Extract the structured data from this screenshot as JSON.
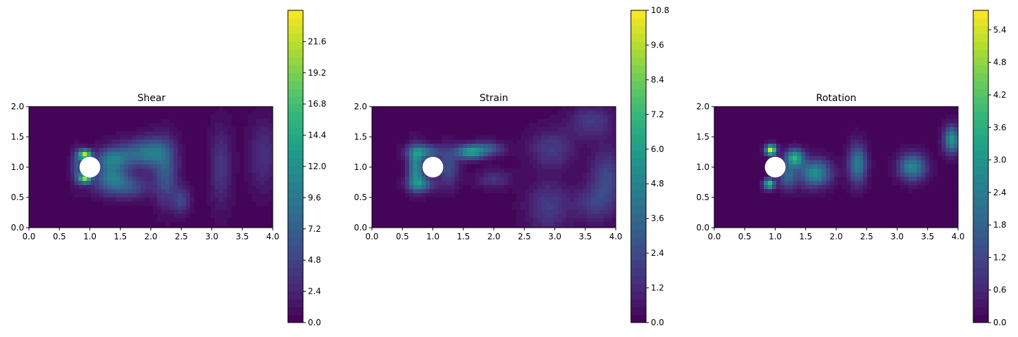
{
  "chart_data": [
    {
      "type": "heatmap",
      "title": "Shear",
      "xlim": [
        0,
        4.0
      ],
      "ylim": [
        0,
        2.0
      ],
      "xticks": [
        "0.0",
        "0.5",
        "1.0",
        "1.5",
        "2.0",
        "2.5",
        "3.0",
        "3.5",
        "4.0"
      ],
      "yticks": [
        "0.0",
        "0.5",
        "1.0",
        "1.5",
        "2.0"
      ],
      "colorbar": {
        "min": 0,
        "max": 24.0,
        "ticks": [
          "0.0",
          "2.4",
          "4.8",
          "7.2",
          "9.6",
          "12.0",
          "14.4",
          "16.8",
          "19.2",
          "21.6"
        ]
      },
      "obstacle": {
        "cx": 1.0,
        "cy": 1.0,
        "r": 0.17
      },
      "features": [
        {
          "x": 1.35,
          "y": 1.12,
          "sx": 0.18,
          "sy": 0.12,
          "v": 8.5
        },
        {
          "x": 1.35,
          "y": 0.85,
          "sx": 0.18,
          "sy": 0.12,
          "v": 7.5
        },
        {
          "x": 0.92,
          "y": 1.2,
          "sx": 0.07,
          "sy": 0.06,
          "v": 22.0
        },
        {
          "x": 0.92,
          "y": 0.82,
          "sx": 0.07,
          "sy": 0.06,
          "v": 20.0
        },
        {
          "x": 0.78,
          "y": 1.0,
          "sx": 0.06,
          "sy": 0.18,
          "v": 6.0
        },
        {
          "x": 1.55,
          "y": 0.68,
          "sx": 0.3,
          "sy": 0.13,
          "v": 6.5
        },
        {
          "x": 1.75,
          "y": 1.22,
          "sx": 0.28,
          "sy": 0.15,
          "v": 6.5
        },
        {
          "x": 2.05,
          "y": 1.25,
          "sx": 0.18,
          "sy": 0.18,
          "v": 5.5
        },
        {
          "x": 2.25,
          "y": 0.9,
          "sx": 0.13,
          "sy": 0.35,
          "v": 6.0
        },
        {
          "x": 2.5,
          "y": 0.45,
          "sx": 0.1,
          "sy": 0.15,
          "v": 4.5
        },
        {
          "x": 3.15,
          "y": 1.0,
          "sx": 0.12,
          "sy": 0.45,
          "v": 3.5
        },
        {
          "x": 3.85,
          "y": 1.2,
          "sx": 0.16,
          "sy": 0.4,
          "v": 3.0
        }
      ]
    },
    {
      "type": "heatmap",
      "title": "Strain",
      "xlim": [
        0,
        4.0
      ],
      "ylim": [
        0,
        2.0
      ],
      "xticks": [
        "0.0",
        "0.5",
        "1.0",
        "1.5",
        "2.0",
        "2.5",
        "3.0",
        "3.5",
        "4.0"
      ],
      "yticks": [
        "0.0",
        "0.5",
        "1.0",
        "1.5",
        "2.0"
      ],
      "colorbar": {
        "min": 0,
        "max": 10.8,
        "ticks": [
          "0.0",
          "1.2",
          "2.4",
          "3.6",
          "4.8",
          "6.0",
          "7.2",
          "8.4",
          "9.6",
          "10.8"
        ]
      },
      "obstacle": {
        "cx": 1.0,
        "cy": 1.0,
        "r": 0.17
      },
      "features": [
        {
          "x": 0.72,
          "y": 1.0,
          "sx": 0.09,
          "sy": 0.22,
          "v": 5.0
        },
        {
          "x": 0.85,
          "y": 1.25,
          "sx": 0.18,
          "sy": 0.08,
          "v": 4.2
        },
        {
          "x": 0.8,
          "y": 0.72,
          "sx": 0.15,
          "sy": 0.09,
          "v": 4.0
        },
        {
          "x": 1.25,
          "y": 1.0,
          "sx": 0.12,
          "sy": 0.22,
          "v": 2.5
        },
        {
          "x": 1.6,
          "y": 1.25,
          "sx": 0.16,
          "sy": 0.08,
          "v": 5.5
        },
        {
          "x": 1.9,
          "y": 1.3,
          "sx": 0.18,
          "sy": 0.08,
          "v": 3.0
        },
        {
          "x": 2.95,
          "y": 1.3,
          "sx": 0.25,
          "sy": 0.22,
          "v": 1.8
        },
        {
          "x": 2.0,
          "y": 0.8,
          "sx": 0.2,
          "sy": 0.1,
          "v": 1.5
        },
        {
          "x": 2.9,
          "y": 0.35,
          "sx": 0.25,
          "sy": 0.28,
          "v": 1.8
        },
        {
          "x": 3.6,
          "y": 1.75,
          "sx": 0.25,
          "sy": 0.18,
          "v": 1.8
        },
        {
          "x": 3.85,
          "y": 0.8,
          "sx": 0.18,
          "sy": 0.35,
          "v": 2.2
        },
        {
          "x": 3.6,
          "y": 0.4,
          "sx": 0.2,
          "sy": 0.2,
          "v": 1.5
        }
      ]
    },
    {
      "type": "heatmap",
      "title": "Rotation",
      "xlim": [
        0,
        4.0
      ],
      "ylim": [
        0,
        2.0
      ],
      "xticks": [
        "0.0",
        "0.5",
        "1.0",
        "1.5",
        "2.0",
        "2.5",
        "3.0",
        "3.5",
        "4.0"
      ],
      "yticks": [
        "0.0",
        "0.5",
        "1.0",
        "1.5",
        "2.0"
      ],
      "colorbar": {
        "min": 0,
        "max": 5.76,
        "ticks": [
          "0.0",
          "0.6",
          "1.2",
          "1.8",
          "2.4",
          "3.0",
          "3.6",
          "4.2",
          "4.8",
          "5.4"
        ]
      },
      "obstacle": {
        "cx": 1.0,
        "cy": 1.0,
        "r": 0.17
      },
      "features": [
        {
          "x": 0.93,
          "y": 1.28,
          "sx": 0.06,
          "sy": 0.06,
          "v": 5.5
        },
        {
          "x": 0.9,
          "y": 0.72,
          "sx": 0.06,
          "sy": 0.06,
          "v": 4.0
        },
        {
          "x": 1.32,
          "y": 1.15,
          "sx": 0.1,
          "sy": 0.1,
          "v": 3.5
        },
        {
          "x": 1.2,
          "y": 0.85,
          "sx": 0.1,
          "sy": 0.15,
          "v": 1.8
        },
        {
          "x": 1.65,
          "y": 0.9,
          "sx": 0.18,
          "sy": 0.15,
          "v": 2.8
        },
        {
          "x": 2.35,
          "y": 1.05,
          "sx": 0.1,
          "sy": 0.22,
          "v": 2.4
        },
        {
          "x": 3.25,
          "y": 1.0,
          "sx": 0.15,
          "sy": 0.15,
          "v": 2.6
        },
        {
          "x": 3.9,
          "y": 1.45,
          "sx": 0.09,
          "sy": 0.15,
          "v": 3.0
        }
      ]
    }
  ]
}
